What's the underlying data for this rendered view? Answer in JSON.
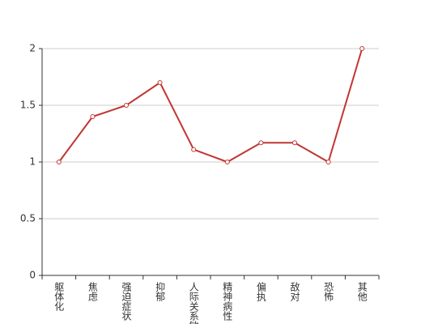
{
  "chart_data": {
    "type": "line",
    "categories": [
      "躯体化",
      "焦虑",
      "强迫症状",
      "抑郁",
      "人际关系敏感",
      "精神病性",
      "偏执",
      "敌对",
      "恐怖",
      "其他"
    ],
    "values": [
      1,
      1.4,
      1.5,
      1.7,
      1.11,
      1,
      1.17,
      1.17,
      1,
      2
    ],
    "color": "#c23531",
    "ylim": [
      0,
      2
    ],
    "yticks": [
      0,
      0.5,
      1,
      1.5,
      2
    ],
    "grid": true
  }
}
